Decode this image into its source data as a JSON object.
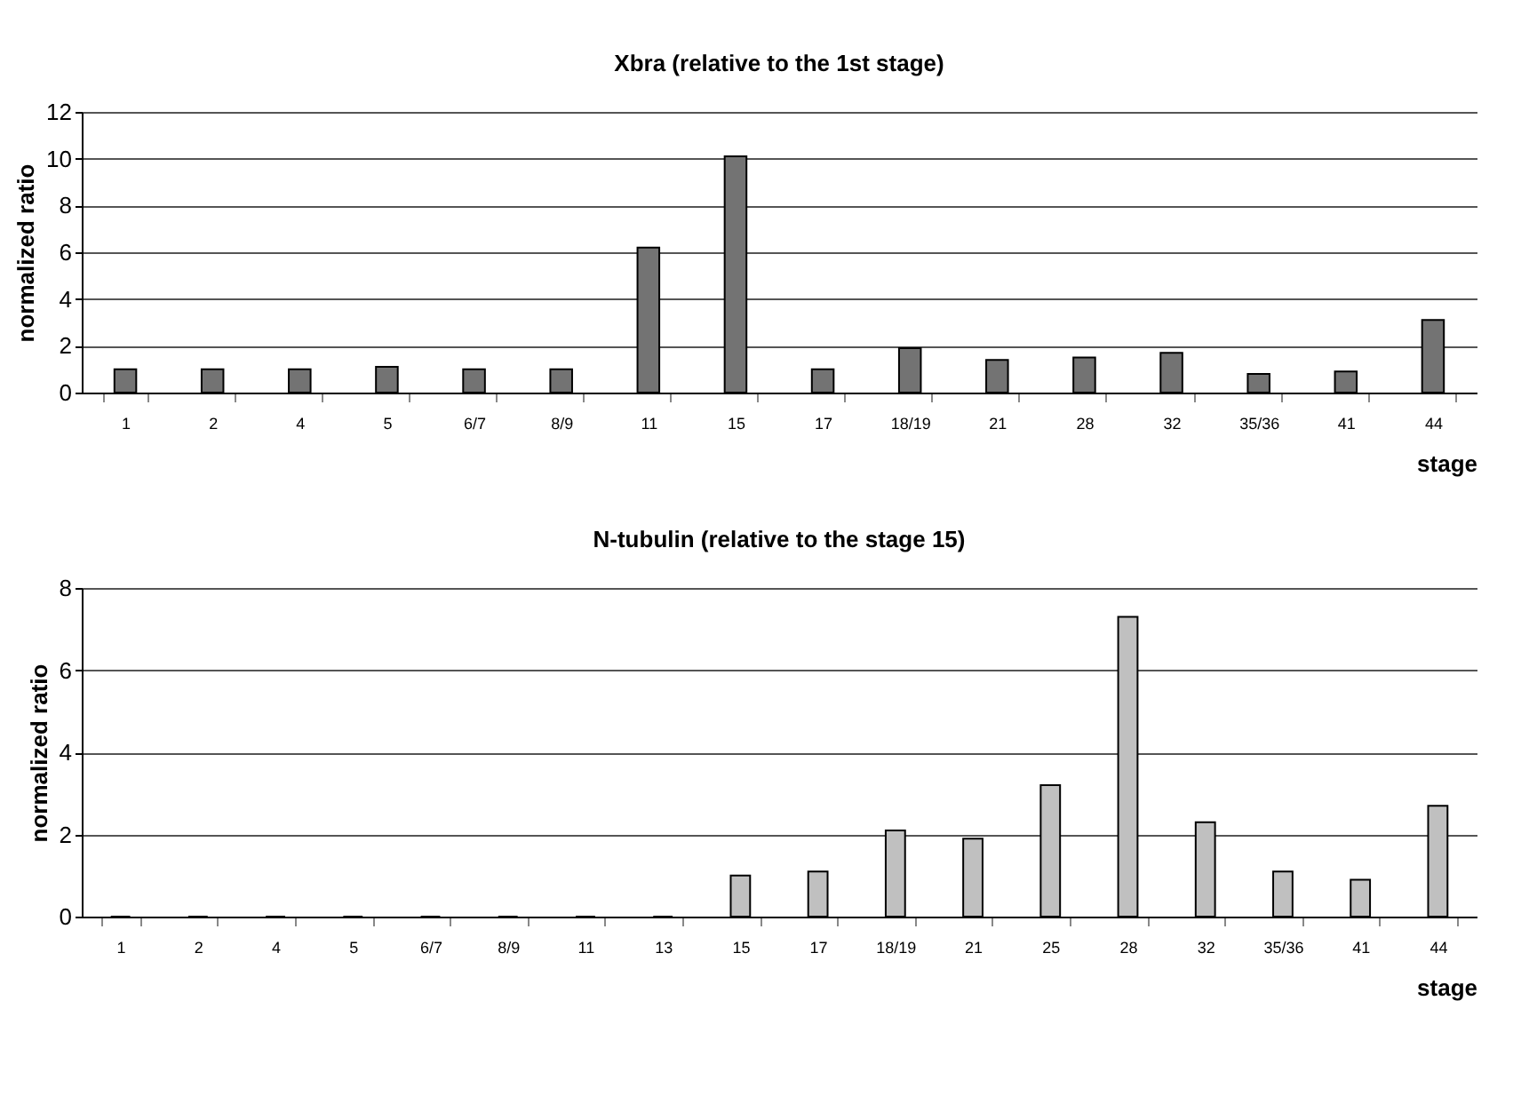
{
  "chart_data": [
    {
      "type": "bar",
      "title": "Xbra (relative to the 1st stage)",
      "xlabel": "stage",
      "ylabel": "normalized ratio",
      "categories": [
        "1",
        "2",
        "4",
        "5",
        "6/7",
        "8/9",
        "11",
        "15",
        "17",
        "18/19",
        "21",
        "28",
        "32",
        "35/36",
        "41",
        "44"
      ],
      "values": [
        1.0,
        1.0,
        1.0,
        1.1,
        1.0,
        1.0,
        6.2,
        10.1,
        1.0,
        1.9,
        1.4,
        1.5,
        1.7,
        0.8,
        0.9,
        3.1
      ],
      "color": "#737373",
      "ylim": [
        0,
        12
      ],
      "yticks": [
        0,
        2,
        4,
        6,
        8,
        10,
        12
      ],
      "grid": "y"
    },
    {
      "type": "bar",
      "title": "N-tubulin (relative to the stage 15)",
      "xlabel": "stage",
      "ylabel": "normalized ratio",
      "categories": [
        "1",
        "2",
        "4",
        "5",
        "6/7",
        "8/9",
        "11",
        "13",
        "15",
        "17",
        "18/19",
        "21",
        "25",
        "28",
        "32",
        "35/36",
        "41",
        "44"
      ],
      "values": [
        0,
        0,
        0,
        0,
        0,
        0,
        0,
        0,
        1.0,
        1.1,
        2.1,
        1.9,
        3.2,
        7.3,
        2.3,
        1.1,
        0.9,
        2.7
      ],
      "color": "#c0c0c0",
      "ylim": [
        0,
        8
      ],
      "yticks": [
        0,
        2,
        4,
        6,
        8
      ],
      "grid": "y"
    }
  ]
}
